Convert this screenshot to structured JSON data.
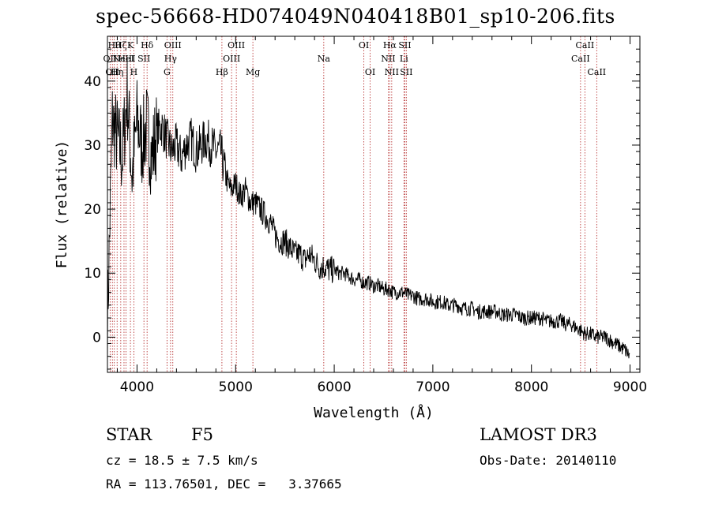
{
  "chart_data": {
    "type": "line",
    "title": "spec-56668-HD074049N040418B01_sp10-206.fits",
    "xlabel": "Wavelength (Å)",
    "ylabel": "Flux (relative)",
    "xlim": [
      3700,
      9100
    ],
    "ylim": [
      -5.5,
      47
    ],
    "xticks": [
      4000,
      5000,
      6000,
      7000,
      8000,
      9000
    ],
    "yticks": [
      0,
      10,
      20,
      30,
      40
    ],
    "grid": false,
    "legend": "none",
    "line_color": "#000000",
    "marker_color": "#b22222",
    "series": [
      {
        "x": [
          3700,
          3750,
          3800,
          3850,
          3900,
          3950,
          4000,
          4050,
          4100,
          4150,
          4200,
          4250,
          4300,
          4350,
          4400,
          4450,
          4500,
          4550,
          4600,
          4650,
          4700,
          4750,
          4800,
          4850,
          4900,
          4950,
          5000,
          5050,
          5100,
          5150,
          5200,
          5250,
          5300,
          5350,
          5400,
          5450,
          5500,
          5550,
          5600,
          5650,
          5700,
          5750,
          5800,
          5850,
          5900,
          5950,
          6000,
          6050,
          6100,
          6150,
          6200,
          6250,
          6300,
          6350,
          6400,
          6450,
          6500,
          6550,
          6600,
          6650,
          6700,
          6750,
          6800,
          6850,
          6900,
          6950,
          7000,
          7050,
          7100,
          7150,
          7200,
          7250,
          7300,
          7350,
          7400,
          7450,
          7500,
          7550,
          7600,
          7650,
          7700,
          7750,
          7800,
          7850,
          7900,
          7950,
          8000,
          8050,
          8100,
          8150,
          8200,
          8250,
          8300,
          8350,
          8400,
          8450,
          8500,
          8550,
          8600,
          8650,
          8700,
          8750,
          8800,
          8850,
          8900,
          8950,
          9000
        ],
        "y": [
          2,
          34,
          31,
          28,
          38,
          25,
          34,
          30,
          33,
          28,
          32,
          33,
          31,
          29,
          30,
          28,
          30,
          31,
          29,
          30,
          31,
          30,
          29,
          29,
          25,
          23,
          24,
          22,
          23,
          21,
          21,
          20,
          19,
          18,
          16,
          15,
          15,
          14,
          13,
          13,
          12,
          13,
          12,
          11,
          11,
          10.5,
          10.5,
          10,
          10,
          9.5,
          9,
          9,
          8.5,
          8.5,
          8,
          8,
          7.5,
          7.5,
          7,
          7,
          7,
          6.5,
          6.5,
          6,
          6,
          6,
          5.5,
          5.5,
          5.5,
          5,
          5,
          5,
          4.5,
          4.5,
          4.5,
          4,
          4,
          4,
          4,
          4,
          3.5,
          3.5,
          3.5,
          3.5,
          3,
          3,
          3,
          3,
          3,
          2.5,
          2.5,
          2.5,
          2.5,
          2,
          2,
          1.5,
          1,
          0.5,
          0.5,
          0,
          0,
          0,
          -0.5,
          -1,
          -1.5,
          -2,
          -3
        ]
      }
    ],
    "lines": [
      {
        "x": 3727,
        "label": "OII",
        "row": 1
      },
      {
        "x": 3750,
        "label": "OII",
        "row": 2
      },
      {
        "x": 3770,
        "label": "Hθ",
        "row": 0
      },
      {
        "x": 3798,
        "label": "Hη",
        "row": 2
      },
      {
        "x": 3835,
        "label": "Hζ",
        "row": 0
      },
      {
        "x": 3868,
        "label": "NeIII",
        "row": 1
      },
      {
        "x": 3889,
        "label": "HeI",
        "row": 1
      },
      {
        "x": 3933,
        "label": "K",
        "row": 0
      },
      {
        "x": 3968,
        "label": "H",
        "row": 2
      },
      {
        "x": 4070,
        "label": "SII",
        "row": 1
      },
      {
        "x": 4102,
        "label": "Hδ",
        "row": 0
      },
      {
        "x": 4304,
        "label": "G",
        "row": 2
      },
      {
        "x": 4340,
        "label": "Hγ",
        "row": 1
      },
      {
        "x": 4363,
        "label": "OIII",
        "row": 0
      },
      {
        "x": 4861,
        "label": "Hβ",
        "row": 2
      },
      {
        "x": 4959,
        "label": "OIII",
        "row": 1
      },
      {
        "x": 5007,
        "label": "OIII",
        "row": 0
      },
      {
        "x": 5175,
        "label": "Mg",
        "row": 2
      },
      {
        "x": 5894,
        "label": "Na",
        "row": 1
      },
      {
        "x": 6300,
        "label": "OI",
        "row": 0
      },
      {
        "x": 6364,
        "label": "OI",
        "row": 2
      },
      {
        "x": 6548,
        "label": "NII",
        "row": 1
      },
      {
        "x": 6563,
        "label": "Hα",
        "row": 0
      },
      {
        "x": 6583,
        "label": "NII",
        "row": 2
      },
      {
        "x": 6707,
        "label": "Li",
        "row": 1
      },
      {
        "x": 6716,
        "label": "SII",
        "row": 0
      },
      {
        "x": 6731,
        "label": "SII",
        "row": 2
      },
      {
        "x": 8498,
        "label": "CaII",
        "row": 1
      },
      {
        "x": 8542,
        "label": "CaII",
        "row": 0
      },
      {
        "x": 8662,
        "label": "CaII",
        "row": 2
      }
    ]
  },
  "info": {
    "class_label": "STAR",
    "subclass": "F5",
    "survey": "LAMOST DR3",
    "cz": "cz = 18.5 ± 7.5 km/s",
    "obs_date": "Obs-Date: 20140110",
    "coords": "RA = 113.76501, DEC =   3.37665"
  }
}
